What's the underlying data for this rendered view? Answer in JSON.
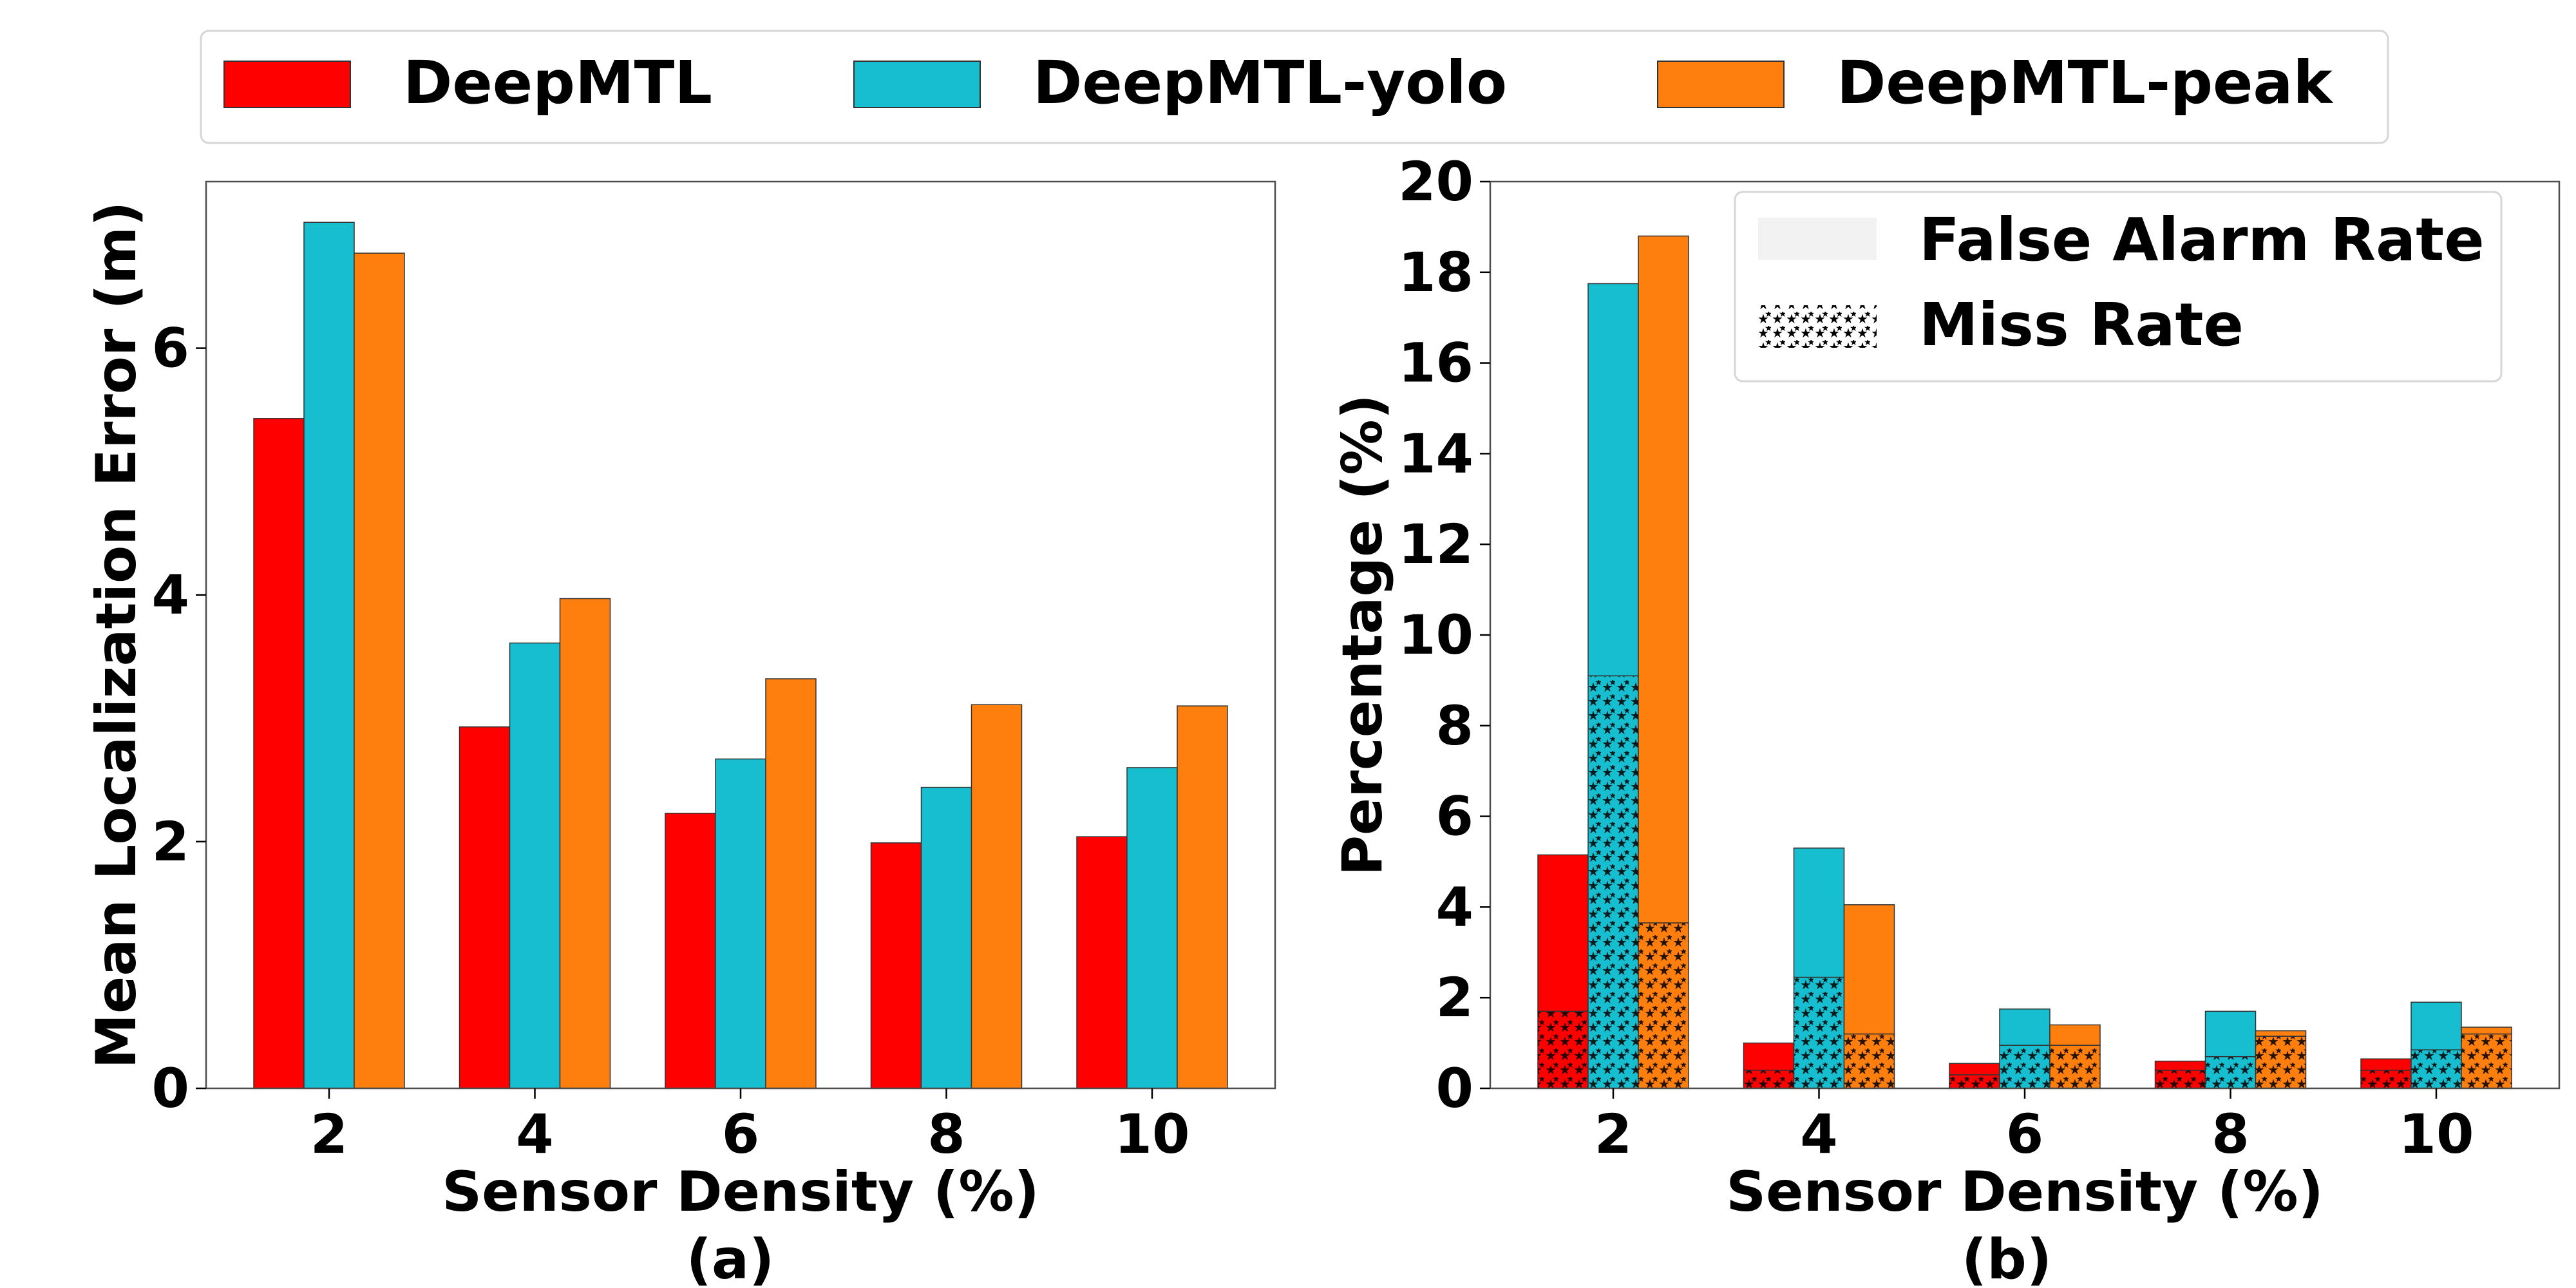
{
  "legend": {
    "series": [
      {
        "name": "DeepMTL",
        "color": "#ff0000"
      },
      {
        "name": "DeepMTL-yolo",
        "color": "#17becf"
      },
      {
        "name": "DeepMTL-peak",
        "color": "#ff7f0e"
      }
    ]
  },
  "chart_data": [
    {
      "type": "bar",
      "caption": "(a)",
      "xlabel": "Sensor Density (%)",
      "ylabel": "Mean Localization Error (m)",
      "categories": [
        "2",
        "4",
        "6",
        "8",
        "10"
      ],
      "ylim": [
        0,
        7.35
      ],
      "yticks": [
        0,
        2,
        4,
        6
      ],
      "series": [
        {
          "name": "DeepMTL",
          "values": [
            5.43,
            2.93,
            2.23,
            1.99,
            2.04
          ]
        },
        {
          "name": "DeepMTL-yolo",
          "values": [
            7.02,
            3.61,
            2.67,
            2.44,
            2.6
          ]
        },
        {
          "name": "DeepMTL-peak",
          "values": [
            6.77,
            3.97,
            3.32,
            3.11,
            3.1
          ]
        }
      ]
    },
    {
      "type": "bar",
      "stacked": true,
      "caption": "(b)",
      "xlabel": "Sensor Density (%)",
      "ylabel": "Percentage (%)",
      "categories": [
        "2",
        "4",
        "6",
        "8",
        "10"
      ],
      "ylim": [
        0,
        20
      ],
      "yticks": [
        0,
        2,
        4,
        6,
        8,
        10,
        12,
        14,
        16,
        18,
        20
      ],
      "legend": [
        "False Alarm Rate",
        "Miss Rate"
      ],
      "legend_position": "top-right",
      "series": [
        {
          "name": "DeepMTL",
          "miss_rate": [
            1.7,
            0.4,
            0.3,
            0.4,
            0.4
          ],
          "false_alarm_rate": [
            3.45,
            0.6,
            0.25,
            0.2,
            0.25
          ]
        },
        {
          "name": "DeepMTL-yolo",
          "miss_rate": [
            9.1,
            2.45,
            0.95,
            0.7,
            0.85
          ],
          "false_alarm_rate": [
            8.65,
            2.85,
            0.8,
            1.0,
            1.05
          ]
        },
        {
          "name": "DeepMTL-peak",
          "miss_rate": [
            3.65,
            1.2,
            0.95,
            1.15,
            1.2
          ],
          "false_alarm_rate": [
            15.15,
            2.85,
            0.45,
            0.12,
            0.15
          ]
        }
      ]
    }
  ]
}
